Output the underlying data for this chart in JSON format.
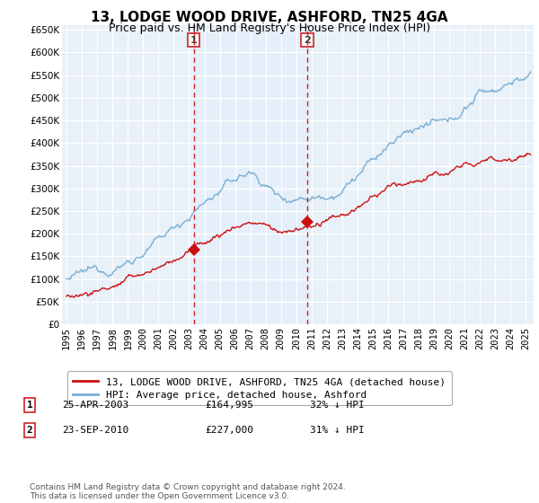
{
  "title": "13, LODGE WOOD DRIVE, ASHFORD, TN25 4GA",
  "subtitle": "Price paid vs. HM Land Registry's House Price Index (HPI)",
  "ylim": [
    0,
    660000
  ],
  "yticks": [
    0,
    50000,
    100000,
    150000,
    200000,
    250000,
    300000,
    350000,
    400000,
    450000,
    500000,
    550000,
    600000,
    650000
  ],
  "xlim_start": 1994.7,
  "xlim_end": 2025.5,
  "hpi_color": "#7aafd4",
  "price_color": "#cc1111",
  "dashed_line_color": "#cc2222",
  "shade_color": "#ddeeff",
  "background_color": "#e8f0f8",
  "grid_color": "#ffffff",
  "transaction1_date": 2003.3,
  "transaction2_date": 2010.72,
  "transaction1_price": 164995,
  "transaction2_price": 227000,
  "legend_line1": "13, LODGE WOOD DRIVE, ASHFORD, TN25 4GA (detached house)",
  "legend_line2": "HPI: Average price, detached house, Ashford",
  "table_row1": [
    "1",
    "25-APR-2003",
    "£164,995",
    "32% ↓ HPI"
  ],
  "table_row2": [
    "2",
    "23-SEP-2010",
    "£227,000",
    "31% ↓ HPI"
  ],
  "footer": "Contains HM Land Registry data © Crown copyright and database right 2024.\nThis data is licensed under the Open Government Licence v3.0.",
  "title_fontsize": 11,
  "subtitle_fontsize": 9,
  "tick_fontsize": 7.5
}
